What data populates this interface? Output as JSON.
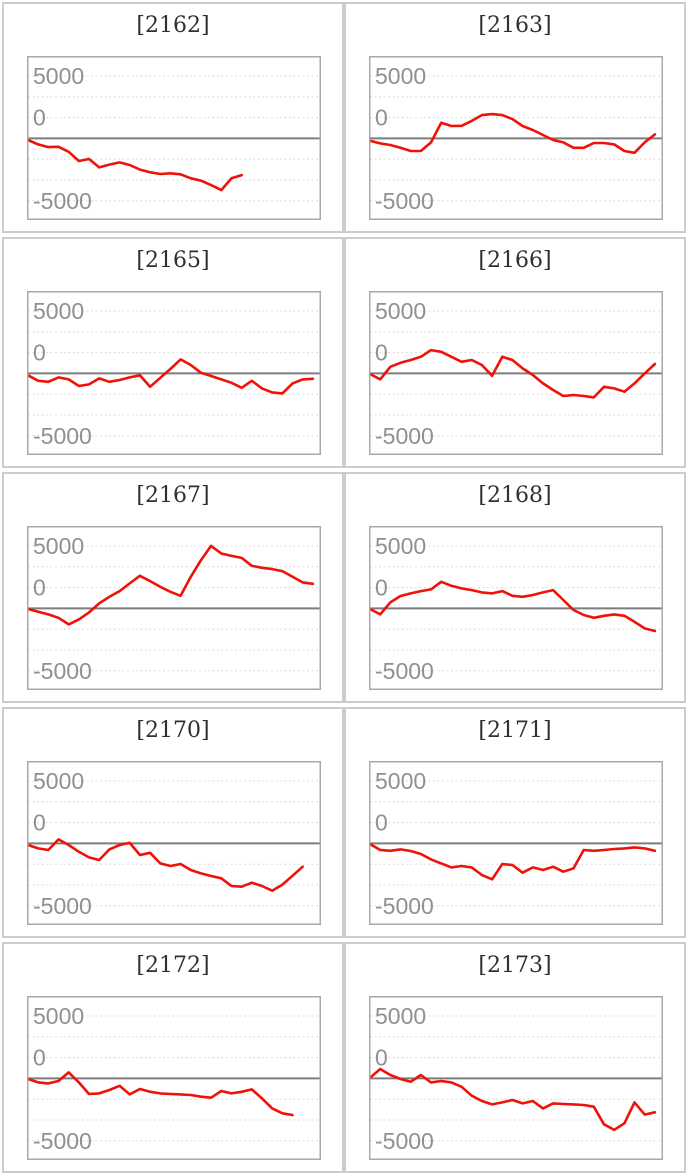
{
  "page": {
    "background": "#ffffff",
    "description": "Grid of 10 small line charts of cumulative差玉-style values per machine number"
  },
  "colors": {
    "series_line": "#ee1208",
    "zero_line": "#7d7d7d",
    "grid_line": "#dcdcdc",
    "plot_border": "#a8a8a8",
    "cell_border": "#cccccc",
    "tick_label": "#909090",
    "title_text": "#303030"
  },
  "axis": {
    "tick_labels": [
      "5000",
      "0",
      "-5000"
    ],
    "tick_values": [
      5000,
      0,
      -5000
    ],
    "gridline_count": 7,
    "gridlines_dashed": true,
    "zero_line_solid": true,
    "ylim_visible": [
      -6500,
      6600
    ],
    "x_slots_full_width": 29
  },
  "chart_data": [
    {
      "type": "line",
      "title": "[2162]",
      "ylim": [
        -6500,
        6600
      ],
      "yticks": [
        5000,
        0,
        -5000
      ],
      "values": [
        -130,
        -480,
        -700,
        -670,
        -1070,
        -1810,
        -1650,
        -2320,
        -2100,
        -1920,
        -2130,
        -2500,
        -2720,
        -2850,
        -2800,
        -2880,
        -3200,
        -3390,
        -3740,
        -4140,
        -3200,
        -2940
      ]
    },
    {
      "type": "line",
      "title": "[2163]",
      "ylim": [
        -6500,
        6600
      ],
      "yticks": [
        5000,
        0,
        -5000
      ],
      "values": [
        -190,
        -400,
        -530,
        -750,
        -1010,
        -1010,
        -320,
        1250,
        990,
        1010,
        1400,
        1870,
        1950,
        1870,
        1550,
        990,
        670,
        270,
        -130,
        -320,
        -750,
        -750,
        -370,
        -370,
        -480,
        -1010,
        -1150,
        -320,
        320
      ]
    },
    {
      "type": "line",
      "title": "[2165]",
      "ylim": [
        -6500,
        6600
      ],
      "yticks": [
        5000,
        0,
        -5000
      ],
      "values": [
        -150,
        -590,
        -670,
        -320,
        -480,
        -1010,
        -880,
        -400,
        -670,
        -530,
        -320,
        -150,
        -1070,
        -350,
        350,
        1120,
        670,
        50,
        -210,
        -480,
        -750,
        -1150,
        -590,
        -1200,
        -1520,
        -1600,
        -800,
        -480,
        -430
      ]
    },
    {
      "type": "line",
      "title": "[2166]",
      "ylim": [
        -6500,
        6600
      ],
      "yticks": [
        5000,
        0,
        -5000
      ],
      "values": [
        -50,
        -480,
        530,
        850,
        1070,
        1330,
        1870,
        1730,
        1330,
        930,
        1070,
        670,
        -190,
        1330,
        1070,
        400,
        -130,
        -800,
        -1330,
        -1810,
        -1730,
        -1810,
        -1920,
        -1070,
        -1200,
        -1470,
        -800,
        0,
        750
      ]
    },
    {
      "type": "line",
      "title": "[2167]",
      "ylim": [
        -6500,
        6600
      ],
      "yticks": [
        5000,
        0,
        -5000
      ],
      "values": [
        -50,
        -270,
        -480,
        -750,
        -1280,
        -880,
        -320,
        400,
        930,
        1390,
        2000,
        2610,
        2190,
        1730,
        1330,
        1010,
        2530,
        3870,
        5010,
        4400,
        4210,
        4050,
        3410,
        3250,
        3150,
        2990,
        2530,
        2080,
        1970
      ]
    },
    {
      "type": "line",
      "title": "[2168]",
      "ylim": [
        -6500,
        6600
      ],
      "yticks": [
        5000,
        0,
        -5000
      ],
      "values": [
        -50,
        -480,
        480,
        990,
        1200,
        1390,
        1520,
        2130,
        1810,
        1600,
        1470,
        1280,
        1200,
        1390,
        1010,
        930,
        1070,
        1280,
        1470,
        670,
        -130,
        -530,
        -750,
        -590,
        -480,
        -590,
        -1070,
        -1600,
        -1810
      ]
    },
    {
      "type": "line",
      "title": "[2170]",
      "ylim": [
        -6500,
        6600
      ],
      "yticks": [
        5000,
        0,
        -5000
      ],
      "values": [
        -130,
        -400,
        -530,
        320,
        -130,
        -670,
        -1120,
        -1330,
        -480,
        -130,
        50,
        -930,
        -750,
        -1600,
        -1810,
        -1650,
        -2130,
        -2400,
        -2610,
        -2800,
        -3410,
        -3470,
        -3150,
        -3410,
        -3790,
        -3300,
        -2600,
        -1870
      ]
    },
    {
      "type": "line",
      "title": "[2171]",
      "ylim": [
        -6500,
        6600
      ],
      "yticks": [
        5000,
        0,
        -5000
      ],
      "values": [
        -50,
        -530,
        -590,
        -480,
        -610,
        -850,
        -1280,
        -1600,
        -1920,
        -1810,
        -1920,
        -2530,
        -2880,
        -1650,
        -1730,
        -2350,
        -1920,
        -2130,
        -1870,
        -2270,
        -2000,
        -530,
        -590,
        -530,
        -450,
        -400,
        -320,
        -400,
        -590
      ]
    },
    {
      "type": "line",
      "title": "[2172]",
      "ylim": [
        -6500,
        6600
      ],
      "yticks": [
        5000,
        0,
        -5000
      ],
      "values": [
        -50,
        -320,
        -400,
        -210,
        480,
        -320,
        -1250,
        -1200,
        -930,
        -590,
        -1280,
        -850,
        -1070,
        -1200,
        -1250,
        -1280,
        -1330,
        -1470,
        -1550,
        -1010,
        -1200,
        -1070,
        -880,
        -1600,
        -2400,
        -2800,
        -2930
      ]
    },
    {
      "type": "line",
      "title": "[2173]",
      "ylim": [
        -6500,
        6600
      ],
      "yticks": [
        5000,
        0,
        -5000
      ],
      "values": [
        50,
        750,
        270,
        -50,
        -270,
        270,
        -320,
        -210,
        -320,
        -670,
        -1390,
        -1810,
        -2080,
        -1920,
        -1730,
        -2000,
        -1810,
        -2400,
        -2000,
        -2050,
        -2080,
        -2130,
        -2270,
        -3680,
        -4130,
        -3600,
        -1920,
        -2900,
        -2720
      ]
    }
  ]
}
